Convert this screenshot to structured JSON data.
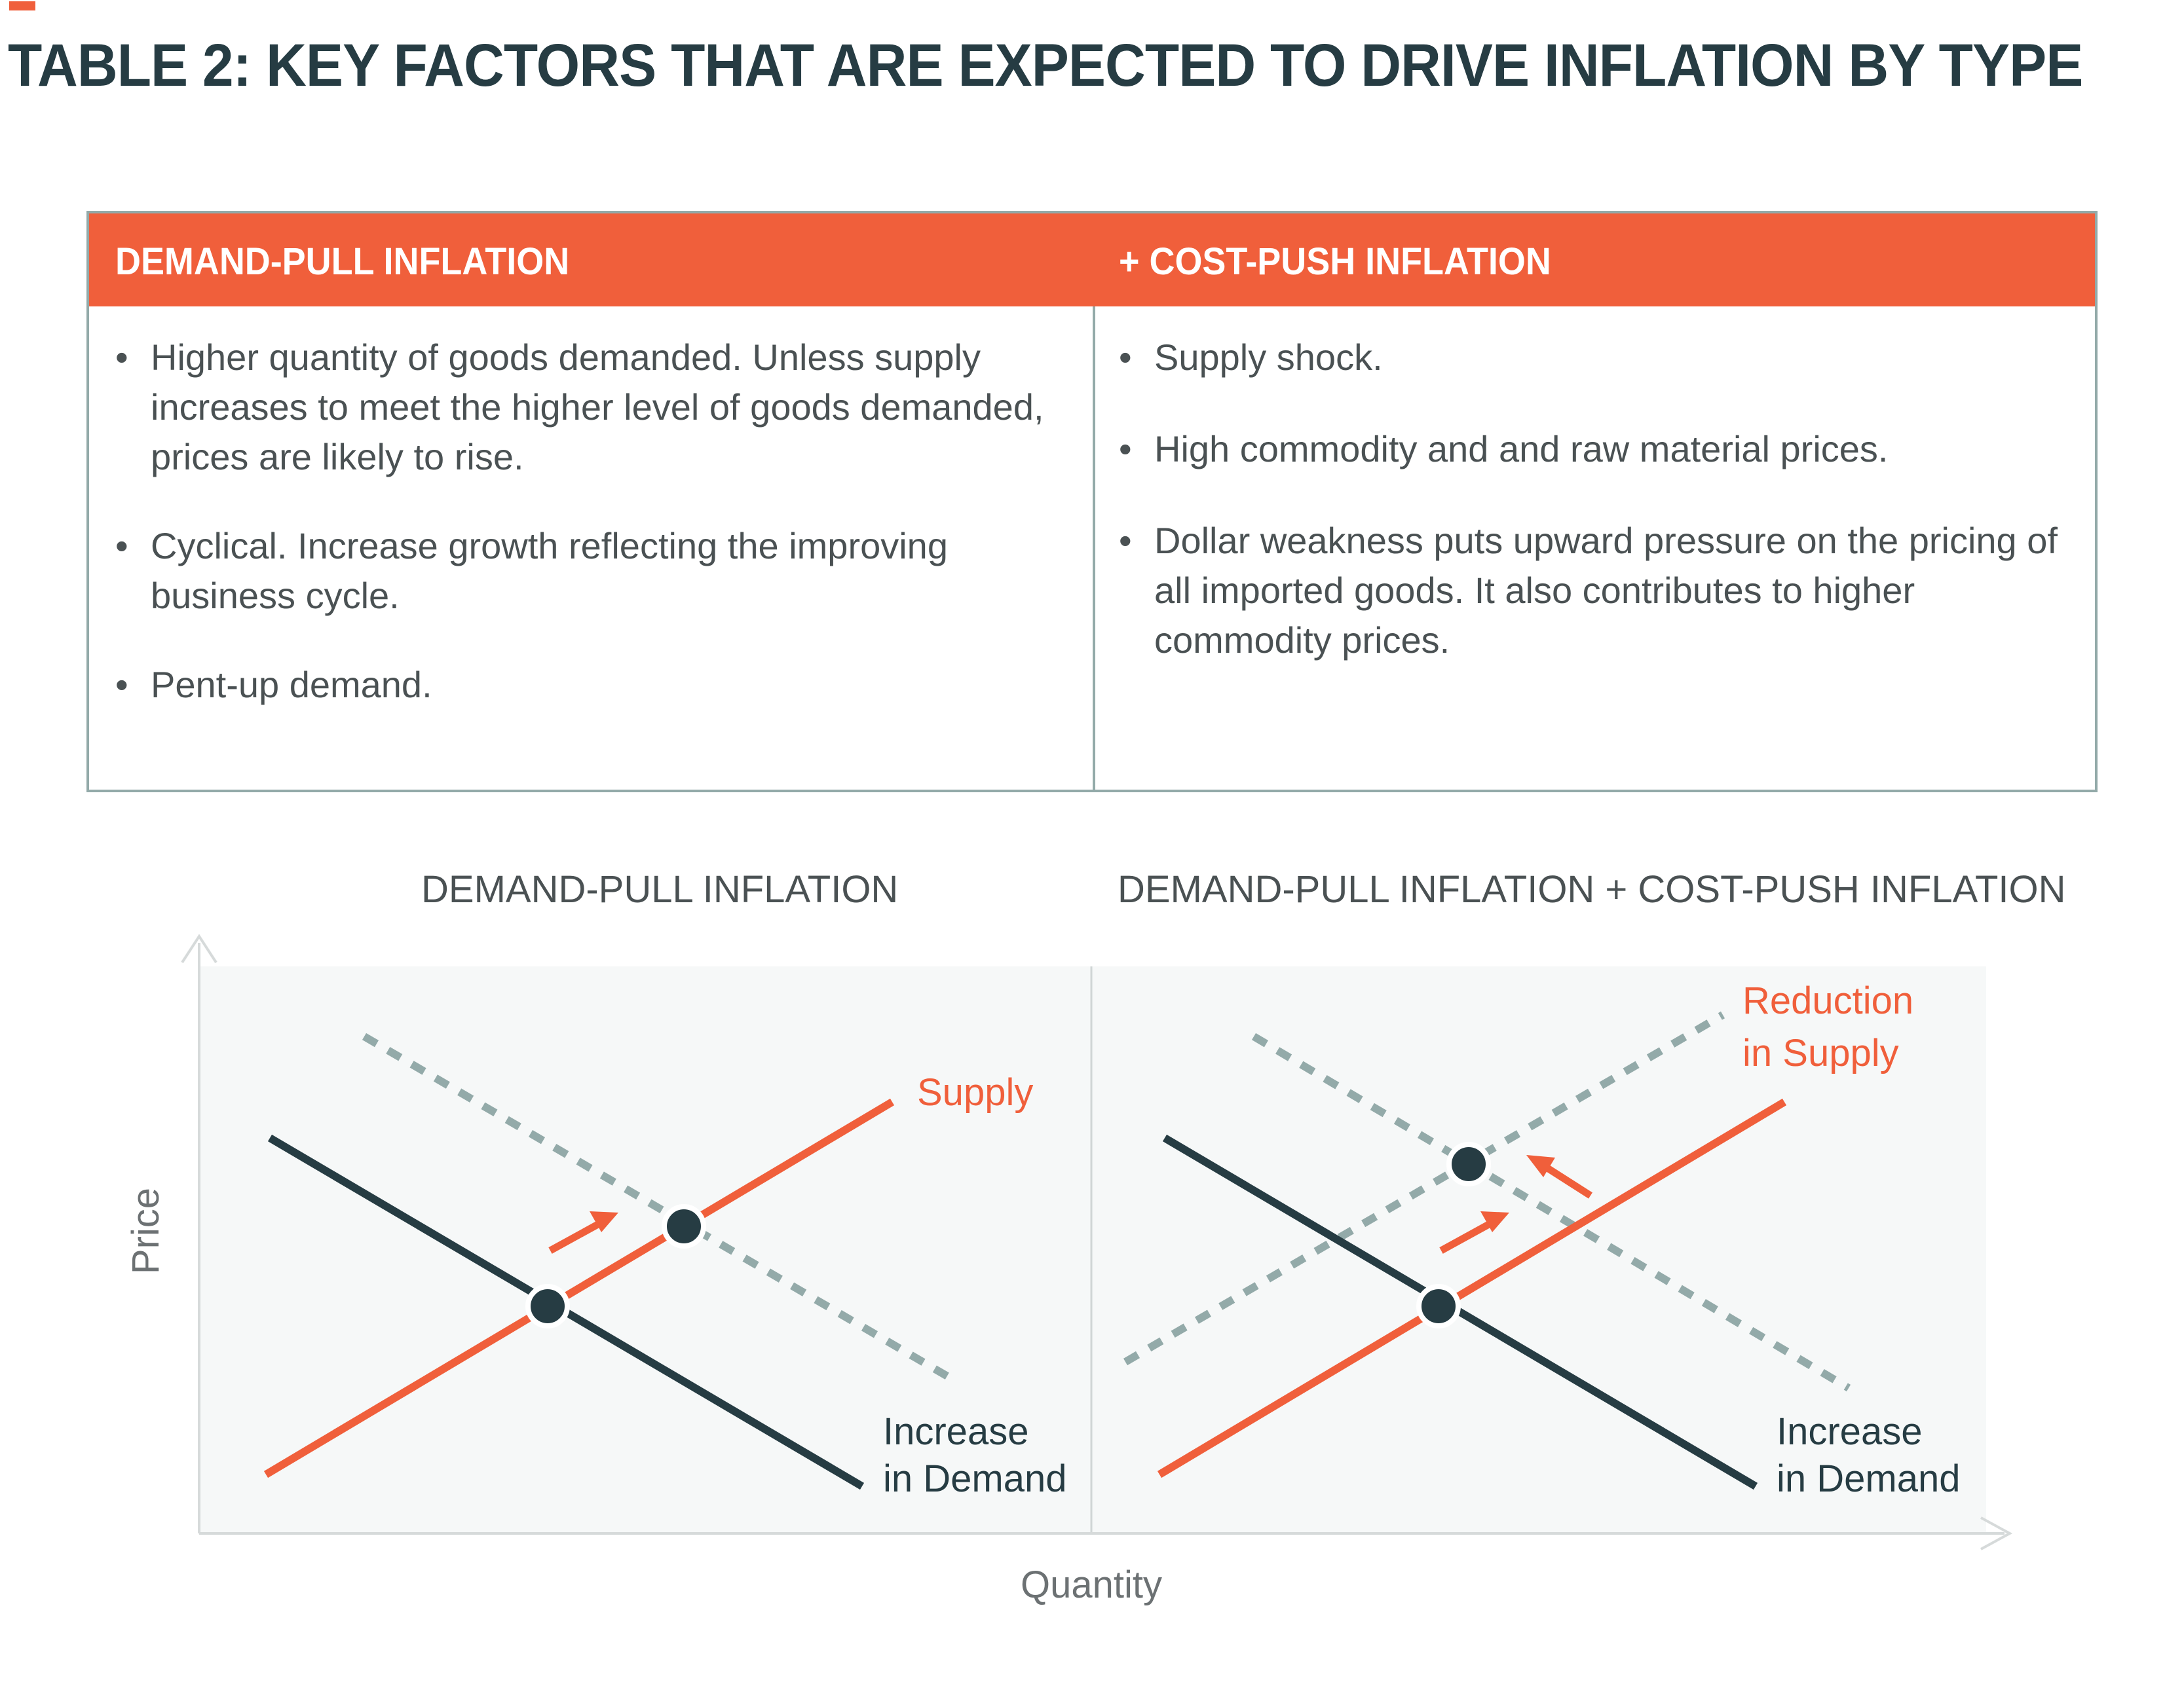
{
  "title": "TABLE 2: KEY FACTORS THAT ARE EXPECTED TO DRIVE INFLATION BY TYPE",
  "colors": {
    "accent": "#f05f3b",
    "dark": "#263c43",
    "dotted": "#93aaa9",
    "panel": "#f6f8f8"
  },
  "table": {
    "headers": [
      "DEMAND-PULL INFLATION",
      "+ COST-PUSH INFLATION"
    ],
    "left_items": [
      "Higher quantity of goods demanded. Unless supply increases to meet the higher level of goods demanded, prices are likely to rise.",
      "Cyclical. Increase growth reflecting the improving business cycle.",
      "Pent-up demand."
    ],
    "right_items": [
      "Supply shock.",
      "High commodity and and raw material prices.",
      "Dollar weakness puts upward pressure on the pricing of all imported goods. It also contributes to higher commodity prices."
    ]
  },
  "diagram": {
    "left_title": "DEMAND-PULL INFLATION",
    "right_title": "DEMAND-PULL INFLATION + COST-PUSH INFLATION",
    "y_axis_label": "Price",
    "x_axis_label": "Quantity",
    "left_supply_label": "Supply",
    "left_demand_label": [
      "Increase",
      "in Demand"
    ],
    "right_supply_label": [
      "Reduction",
      "in Supply"
    ],
    "right_demand_label": [
      "Increase",
      "in Demand"
    ]
  }
}
